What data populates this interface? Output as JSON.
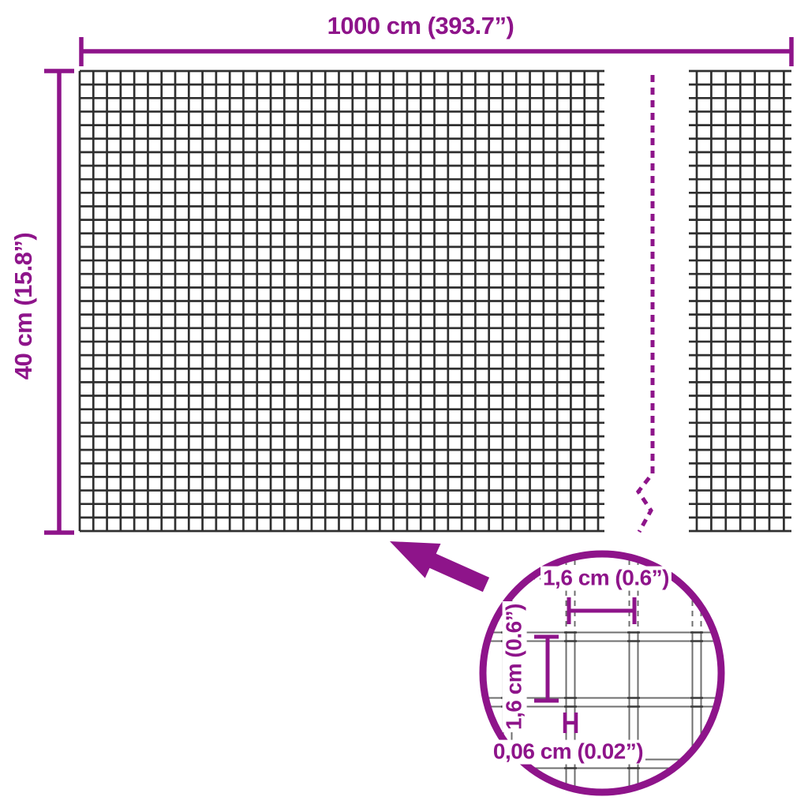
{
  "labels": {
    "width": "1000 cm (393.7”)",
    "height": "40 cm (15.8”)",
    "inset_cell_width": "1,6 cm (0.6”)",
    "inset_cell_height": "1,6 cm (0.6”)",
    "inset_wire_thickness": "0,06 cm (0.02”)"
  },
  "colors": {
    "accent": "#8E148A",
    "mesh_wire": "#2F2F2F",
    "inset_wire_outline": "#6F6F6F",
    "inset_weld_mark": "#3A3A3A",
    "background": "#FFFFFF"
  }
}
